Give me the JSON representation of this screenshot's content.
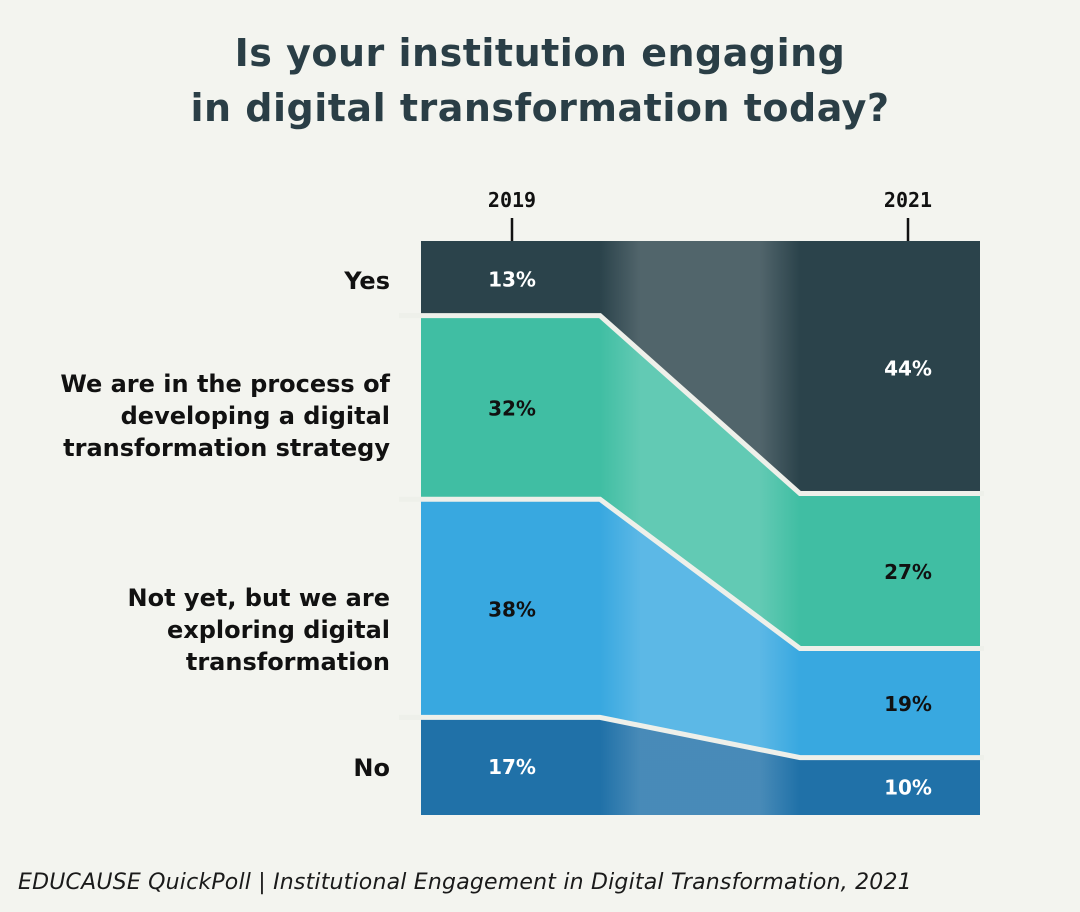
{
  "title_lines": [
    "Is your institution engaging",
    "in digital transformation today?"
  ],
  "source": "EDUCAUSE QuickPoll | Institutional Engagement in Digital Transformation, 2021",
  "chart_data": {
    "type": "area",
    "subtype": "stacked-100-slope",
    "title": "Is your institution engaging in digital transformation today?",
    "x": [
      "2019",
      "2021"
    ],
    "ylim": [
      0,
      100
    ],
    "series": [
      {
        "name": "Yes",
        "values": [
          13,
          44
        ],
        "color": "#2b434b",
        "label_color": "#ffffff",
        "labels": [
          "13%",
          "44%"
        ]
      },
      {
        "name": "We are in the process of developing a digital transformation strategy",
        "values": [
          32,
          27
        ],
        "color": "#40bea3",
        "label_color": "#111111",
        "labels": [
          "32%",
          "27%"
        ]
      },
      {
        "name": "Not yet, but we are exploring digital transformation",
        "values": [
          38,
          19
        ],
        "color": "#38a8e0",
        "label_color": "#111111",
        "labels": [
          "38%",
          "19%"
        ]
      },
      {
        "name": "No",
        "values": [
          17,
          10
        ],
        "color": "#2071a8",
        "label_color": "#ffffff",
        "labels": [
          "17%",
          "10%"
        ]
      }
    ],
    "category_labels": [
      [
        "Yes"
      ],
      [
        "We are in the process of",
        "developing a digital",
        "transformation strategy"
      ],
      [
        "Not yet, but we are",
        "exploring digital",
        "transformation"
      ],
      [
        "No"
      ]
    ],
    "legend": "left"
  }
}
